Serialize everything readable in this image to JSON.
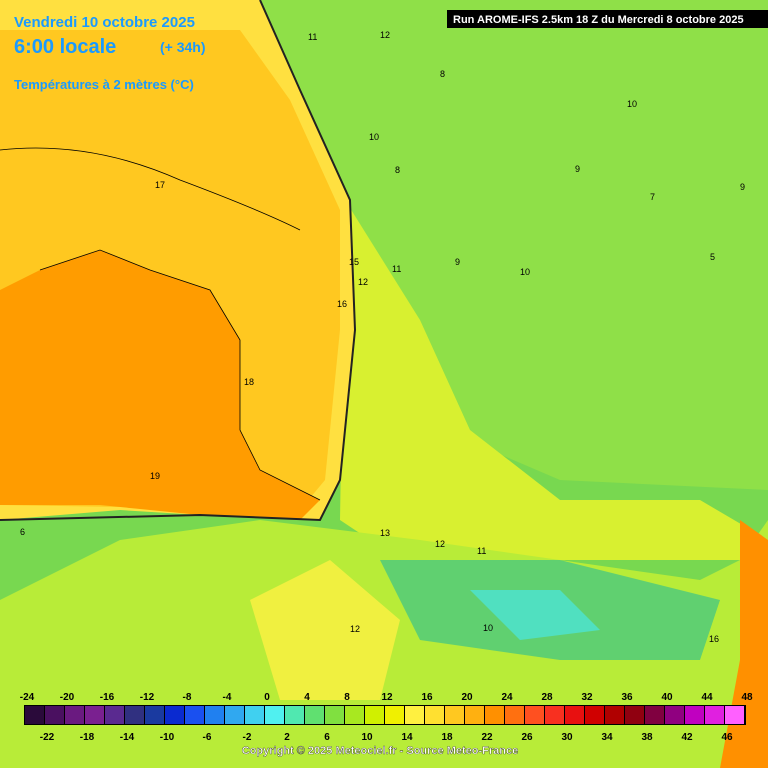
{
  "header": {
    "title": "Vendredi 10 octobre 2025",
    "time": "6:00 locale",
    "offset": "(+ 34h)",
    "variable": "Températures à 2 mètres (°C)",
    "run": "Run AROME-IFS 2.5km 18 Z du Mercredi 8 octobre 2025"
  },
  "legend": {
    "colors": [
      "#2a0a3a",
      "#4a1060",
      "#6a1a80",
      "#7a2090",
      "#5a2a90",
      "#303080",
      "#1a3aa0",
      "#0a2ad0",
      "#1a50f0",
      "#2080f0",
      "#30a8f0",
      "#40d0f0",
      "#50f0f0",
      "#50e8b0",
      "#60e070",
      "#80e040",
      "#a8e820",
      "#d0f000",
      "#f0f000",
      "#fff040",
      "#ffe030",
      "#ffc820",
      "#ffb010",
      "#ff9000",
      "#ff7010",
      "#ff5020",
      "#f83020",
      "#e81010",
      "#d00000",
      "#b00000",
      "#900010",
      "#800040",
      "#900080",
      "#c000c0",
      "#e020e0",
      "#ff60ff"
    ],
    "labels_top": [
      "-24",
      "-20",
      "-16",
      "-12",
      "-8",
      "-4",
      "0",
      "4",
      "8",
      "12",
      "16",
      "20",
      "24",
      "28",
      "32",
      "36",
      "40",
      "44",
      "48"
    ],
    "labels_bottom": [
      "-22",
      "-18",
      "-14",
      "-10",
      "-6",
      "-2",
      "2",
      "6",
      "10",
      "14",
      "18",
      "22",
      "26",
      "30",
      "34",
      "38",
      "42",
      "46"
    ]
  },
  "contour_labels": [
    "17",
    "16",
    "18",
    "19",
    "15",
    "12",
    "11",
    "10",
    "12",
    "11",
    "12",
    "13",
    "10",
    "9",
    "10",
    "8",
    "9",
    "10",
    "11",
    "8",
    "7",
    "9",
    "5",
    "6",
    "16",
    "12"
  ],
  "footer": "Copyright © 2025 Meteociel.fr - Source Meteo-France"
}
